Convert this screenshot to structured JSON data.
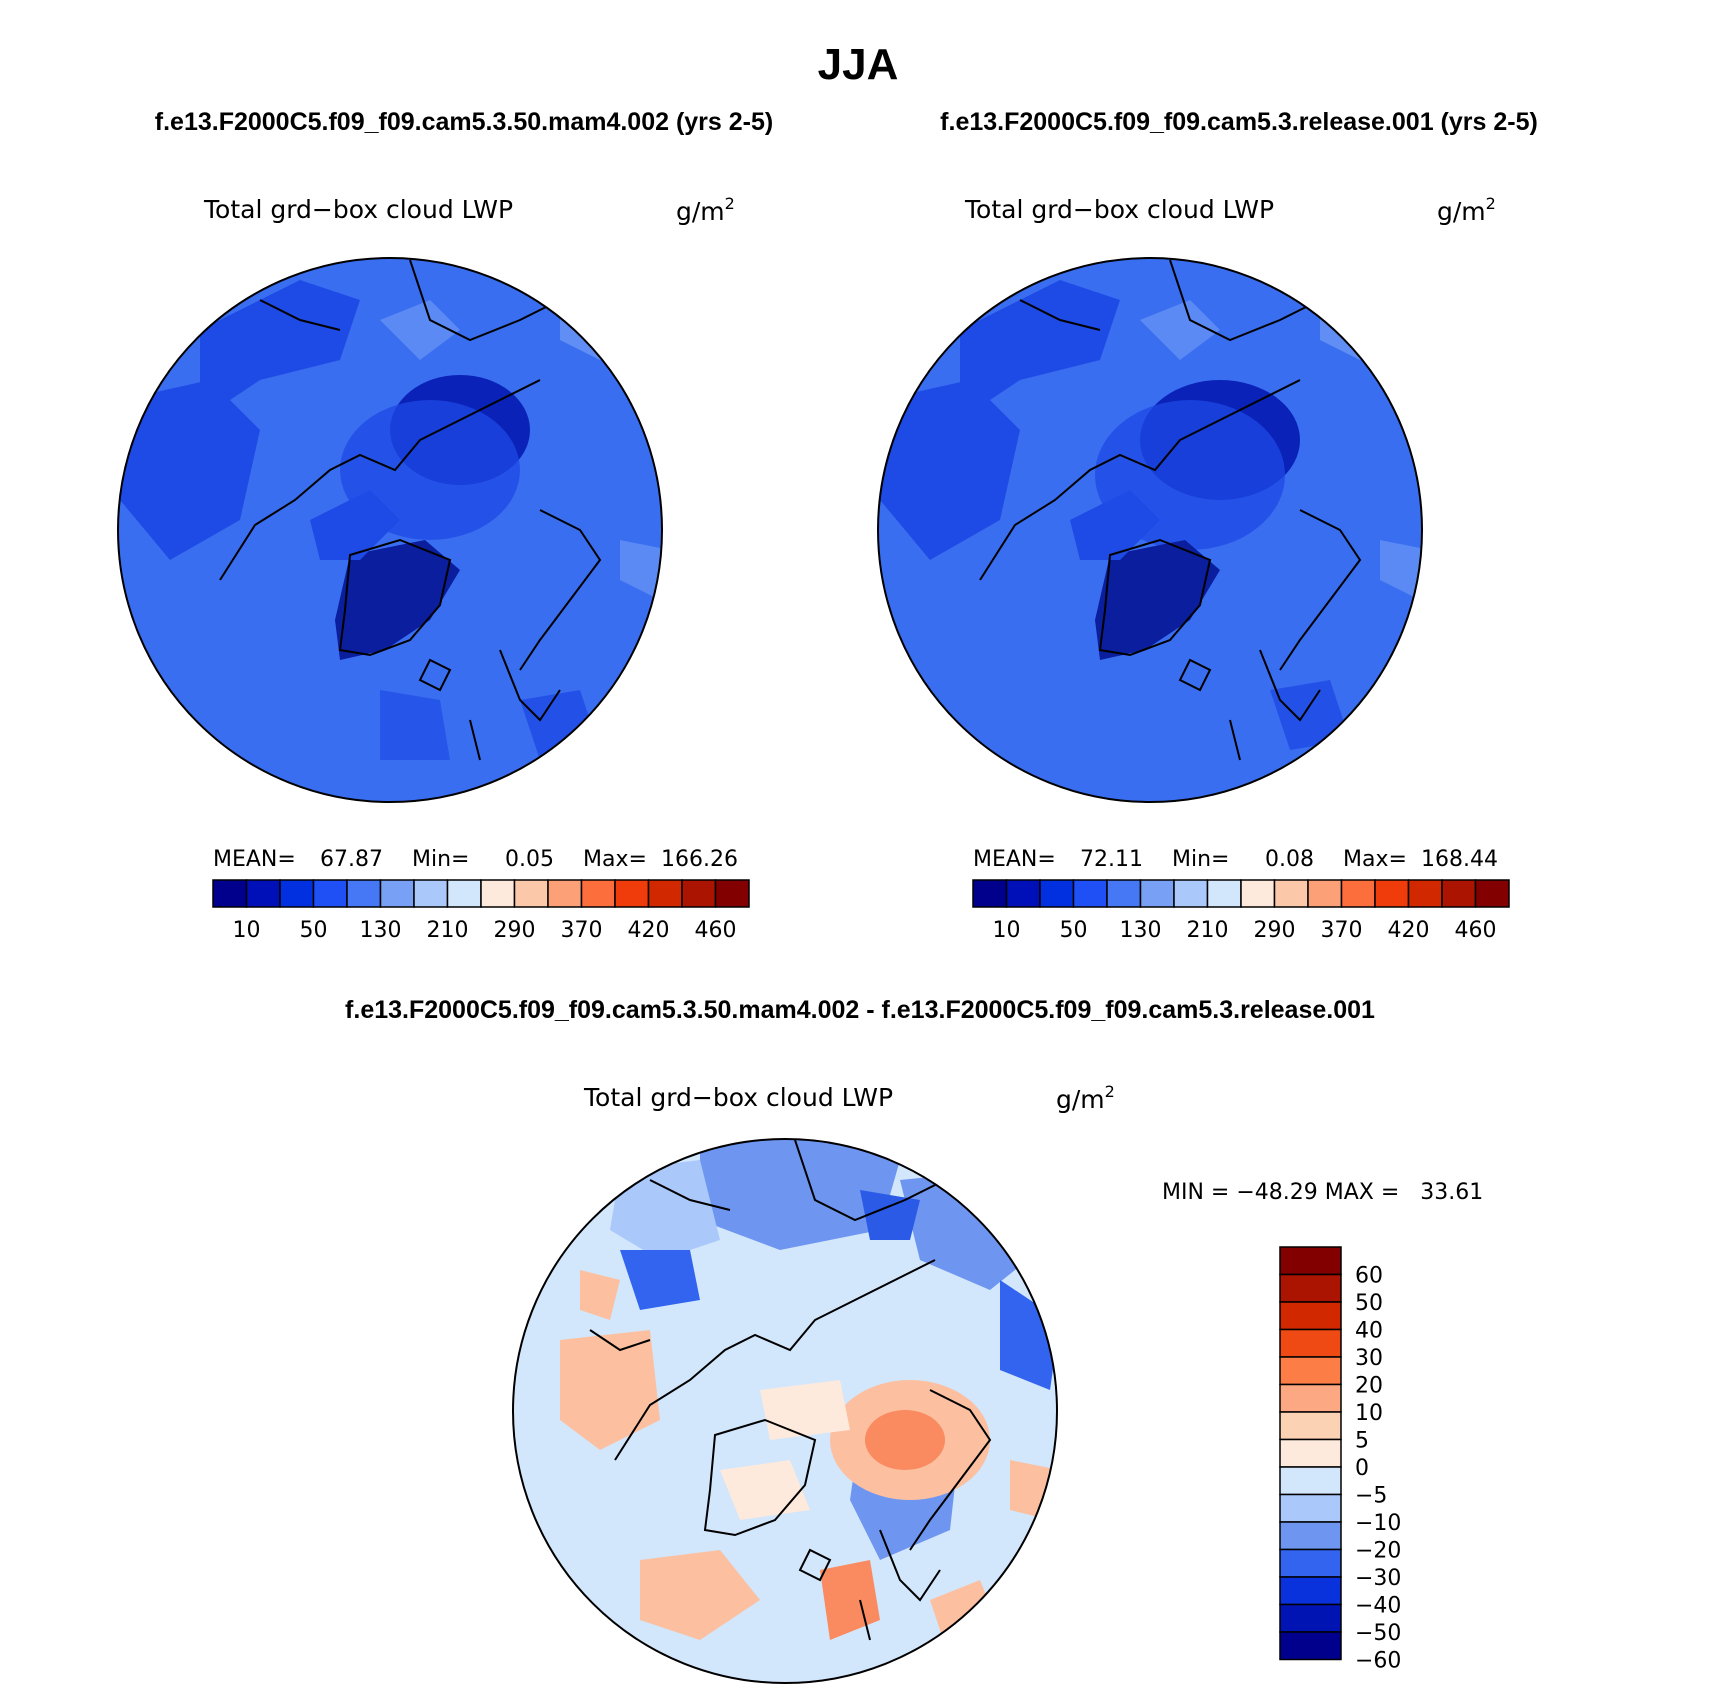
{
  "title": "JJA",
  "case_a_heading": "f.e13.F2000C5.f09_f09.cam5.3.50.mam4.002 (yrs 2-5)",
  "case_b_heading": "f.e13.F2000C5.f09_f09.cam5.3.release.001 (yrs 2-5)",
  "diff_heading": "f.e13.F2000C5.f09_f09.cam5.3.50.mam4.002 - f.e13.F2000C5.f09_f09.cam5.3.release.001",
  "panels": [
    {
      "variable": "Total grd−box cloud LWP",
      "units": "g/m",
      "units_sup": "2",
      "mean_label": "MEAN=",
      "mean": "67.87",
      "min_label": "Min=",
      "min": "0.05",
      "max_label": "Max=",
      "max": "166.26"
    },
    {
      "variable": "Total grd−box cloud LWP",
      "units": "g/m",
      "units_sup": "2",
      "mean_label": "MEAN=",
      "mean": "72.11",
      "min_label": "Min=",
      "min": "0.08",
      "max_label": "Max=",
      "max": "168.44"
    }
  ],
  "diff_panel": {
    "variable": "Total grd−box cloud LWP",
    "units": "g/m",
    "units_sup": "2",
    "minmax": "MIN = −48.29 MAX =   33.61"
  },
  "colorbar_abs": {
    "labels": [
      "10",
      "50",
      "130",
      "210",
      "290",
      "370",
      "420",
      "460"
    ],
    "colors": [
      "#00008c",
      "#0010b8",
      "#0030e0",
      "#1e50f5",
      "#4678f5",
      "#78a0f5",
      "#aac8fa",
      "#d2e6fc",
      "#fdeadc",
      "#fcc8aa",
      "#fca078",
      "#fc6e3c",
      "#f03c0a",
      "#d22800",
      "#aa1400",
      "#820000"
    ]
  },
  "colorbar_diff": {
    "labels": [
      "60",
      "50",
      "40",
      "30",
      "20",
      "10",
      "5",
      "0",
      "−5",
      "−10",
      "−20",
      "−30",
      "−40",
      "−50",
      "−60"
    ],
    "colors_top_to_bottom": [
      "#820000",
      "#aa1400",
      "#d22800",
      "#f04a14",
      "#fc7e46",
      "#fca882",
      "#fcd2b4",
      "#fdeadc",
      "#d2e6fc",
      "#aac8fa",
      "#6e96f0",
      "#3264f0",
      "#0a32dc",
      "#0014b4",
      "#00008c"
    ]
  },
  "map_colors": {
    "ocean_abs": "#3a6ef0",
    "deep_abs": "#0a22b8",
    "mid_abs": "#1e4ae6",
    "light_abs": "#6a96f5",
    "diff_base": "#d2e6fc",
    "diff_pos": "#fcc0a0",
    "diff_pos_strong": "#fa8a60",
    "diff_neg": "#6e96f0",
    "diff_neg_strong": "#2a5ae6",
    "coast": "#000000"
  }
}
